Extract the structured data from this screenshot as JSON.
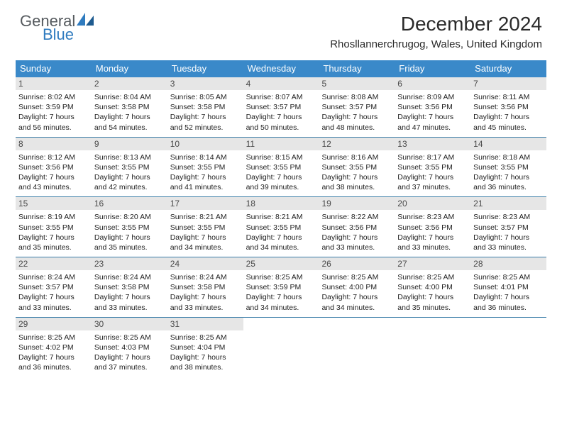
{
  "logo": {
    "general": "General",
    "blue": "Blue"
  },
  "title": "December 2024",
  "location": "Rhosllannerchrugog, Wales, United Kingdom",
  "colors": {
    "header_bg": "#3a89c9",
    "week_border": "#3a7da8",
    "daynum_bg": "#e6e6e6",
    "logo_gray": "#555a5e",
    "logo_blue": "#2f7bbf"
  },
  "weekdays": [
    "Sunday",
    "Monday",
    "Tuesday",
    "Wednesday",
    "Thursday",
    "Friday",
    "Saturday"
  ],
  "weeks": [
    [
      {
        "n": "1",
        "sr": "8:02 AM",
        "ss": "3:59 PM",
        "dl": "7 hours and 56 minutes."
      },
      {
        "n": "2",
        "sr": "8:04 AM",
        "ss": "3:58 PM",
        "dl": "7 hours and 54 minutes."
      },
      {
        "n": "3",
        "sr": "8:05 AM",
        "ss": "3:58 PM",
        "dl": "7 hours and 52 minutes."
      },
      {
        "n": "4",
        "sr": "8:07 AM",
        "ss": "3:57 PM",
        "dl": "7 hours and 50 minutes."
      },
      {
        "n": "5",
        "sr": "8:08 AM",
        "ss": "3:57 PM",
        "dl": "7 hours and 48 minutes."
      },
      {
        "n": "6",
        "sr": "8:09 AM",
        "ss": "3:56 PM",
        "dl": "7 hours and 47 minutes."
      },
      {
        "n": "7",
        "sr": "8:11 AM",
        "ss": "3:56 PM",
        "dl": "7 hours and 45 minutes."
      }
    ],
    [
      {
        "n": "8",
        "sr": "8:12 AM",
        "ss": "3:56 PM",
        "dl": "7 hours and 43 minutes."
      },
      {
        "n": "9",
        "sr": "8:13 AM",
        "ss": "3:55 PM",
        "dl": "7 hours and 42 minutes."
      },
      {
        "n": "10",
        "sr": "8:14 AM",
        "ss": "3:55 PM",
        "dl": "7 hours and 41 minutes."
      },
      {
        "n": "11",
        "sr": "8:15 AM",
        "ss": "3:55 PM",
        "dl": "7 hours and 39 minutes."
      },
      {
        "n": "12",
        "sr": "8:16 AM",
        "ss": "3:55 PM",
        "dl": "7 hours and 38 minutes."
      },
      {
        "n": "13",
        "sr": "8:17 AM",
        "ss": "3:55 PM",
        "dl": "7 hours and 37 minutes."
      },
      {
        "n": "14",
        "sr": "8:18 AM",
        "ss": "3:55 PM",
        "dl": "7 hours and 36 minutes."
      }
    ],
    [
      {
        "n": "15",
        "sr": "8:19 AM",
        "ss": "3:55 PM",
        "dl": "7 hours and 35 minutes."
      },
      {
        "n": "16",
        "sr": "8:20 AM",
        "ss": "3:55 PM",
        "dl": "7 hours and 35 minutes."
      },
      {
        "n": "17",
        "sr": "8:21 AM",
        "ss": "3:55 PM",
        "dl": "7 hours and 34 minutes."
      },
      {
        "n": "18",
        "sr": "8:21 AM",
        "ss": "3:55 PM",
        "dl": "7 hours and 34 minutes."
      },
      {
        "n": "19",
        "sr": "8:22 AM",
        "ss": "3:56 PM",
        "dl": "7 hours and 33 minutes."
      },
      {
        "n": "20",
        "sr": "8:23 AM",
        "ss": "3:56 PM",
        "dl": "7 hours and 33 minutes."
      },
      {
        "n": "21",
        "sr": "8:23 AM",
        "ss": "3:57 PM",
        "dl": "7 hours and 33 minutes."
      }
    ],
    [
      {
        "n": "22",
        "sr": "8:24 AM",
        "ss": "3:57 PM",
        "dl": "7 hours and 33 minutes."
      },
      {
        "n": "23",
        "sr": "8:24 AM",
        "ss": "3:58 PM",
        "dl": "7 hours and 33 minutes."
      },
      {
        "n": "24",
        "sr": "8:24 AM",
        "ss": "3:58 PM",
        "dl": "7 hours and 33 minutes."
      },
      {
        "n": "25",
        "sr": "8:25 AM",
        "ss": "3:59 PM",
        "dl": "7 hours and 34 minutes."
      },
      {
        "n": "26",
        "sr": "8:25 AM",
        "ss": "4:00 PM",
        "dl": "7 hours and 34 minutes."
      },
      {
        "n": "27",
        "sr": "8:25 AM",
        "ss": "4:00 PM",
        "dl": "7 hours and 35 minutes."
      },
      {
        "n": "28",
        "sr": "8:25 AM",
        "ss": "4:01 PM",
        "dl": "7 hours and 36 minutes."
      }
    ],
    [
      {
        "n": "29",
        "sr": "8:25 AM",
        "ss": "4:02 PM",
        "dl": "7 hours and 36 minutes."
      },
      {
        "n": "30",
        "sr": "8:25 AM",
        "ss": "4:03 PM",
        "dl": "7 hours and 37 minutes."
      },
      {
        "n": "31",
        "sr": "8:25 AM",
        "ss": "4:04 PM",
        "dl": "7 hours and 38 minutes."
      },
      null,
      null,
      null,
      null
    ]
  ],
  "labels": {
    "sunrise": "Sunrise:",
    "sunset": "Sunset:",
    "daylight": "Daylight:"
  }
}
